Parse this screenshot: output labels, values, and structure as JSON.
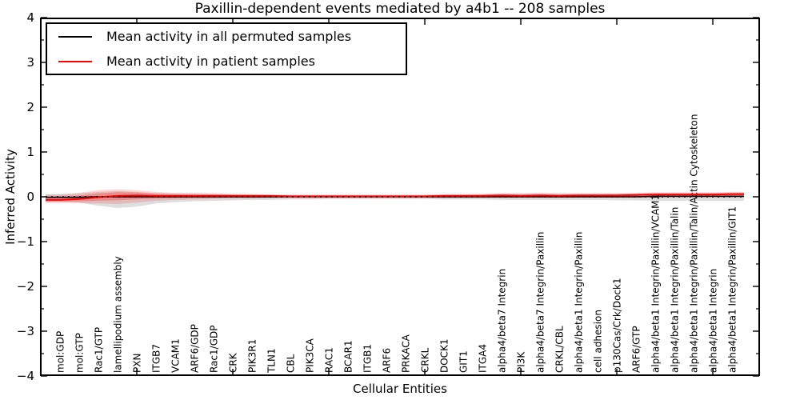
{
  "chart_data": {
    "type": "line",
    "title": "Paxillin-dependent events mediated by a4b1 -- 208 samples",
    "xlabel": "Cellular Entities",
    "ylabel": "Inferred Activity",
    "ylim": [
      -4,
      4
    ],
    "y_major_ticks": [
      -4,
      -3,
      -2,
      -1,
      0,
      1,
      2,
      3,
      4
    ],
    "x_major_tick_positions": [
      4,
      9,
      14,
      19,
      24,
      29,
      34
    ],
    "zero_line": true,
    "legend_position": "upper left",
    "inner_band_factor": 0.55,
    "categories": [
      "mol:GDP",
      "mol:GTP",
      "Rac1/GTP",
      "lamellipodium assembly",
      "PXN",
      "ITGB7",
      "VCAM1",
      "ARF6/GDP",
      "Rac1/GDP",
      "CRK",
      "PIK3R1",
      "TLN1",
      "CBL",
      "PIK3CA",
      "RAC1",
      "BCAR1",
      "ITGB1",
      "ARF6",
      "PRKACA",
      "CRKL",
      "DOCK1",
      "GIT1",
      "ITGA4",
      "alpha4/beta7 Integrin",
      "PI3K",
      "alpha4/beta7 Integrin/Paxillin",
      "CRKL/CBL",
      "alpha4/beta1 Integrin/Paxillin",
      "cell adhesion",
      "p130Cas/Crk/Dock1",
      "ARF6/GTP",
      "alpha4/beta1 Integrin/Paxillin/VCAM1",
      "alpha4/beta1 Integrin/Paxillin/Talin",
      "alpha4/beta1 Integrin/Paxillin/Talin/Actin Cytoskeleton",
      "alpha4/beta1 Integrin",
      "alpha4/beta1 Integrin/Paxillin/GIT1"
    ],
    "series": [
      {
        "name": "Mean activity in all permuted samples",
        "color": "#000000",
        "values": [
          -0.01,
          -0.01,
          0,
          0,
          0,
          0,
          0,
          0,
          0,
          0,
          0,
          0,
          0,
          0,
          0,
          0,
          0,
          0,
          0,
          0,
          0,
          0,
          0,
          0,
          0,
          0,
          0,
          0,
          0,
          0,
          0,
          0.01,
          0.01,
          0.01,
          0.01,
          0.01
        ]
      },
      {
        "name": "Mean activity in patient samples",
        "color": "#ff0000",
        "values": [
          -0.07,
          -0.05,
          -0.01,
          0.02,
          0.03,
          0.02,
          0.02,
          0.02,
          0.02,
          0.02,
          0.02,
          0.02,
          0.01,
          0.01,
          0.01,
          0.01,
          0.01,
          0.01,
          0.01,
          0.01,
          0.02,
          0.02,
          0.02,
          0.03,
          0.02,
          0.03,
          0.02,
          0.03,
          0.03,
          0.03,
          0.04,
          0.05,
          0.05,
          0.05,
          0.05,
          0.06
        ]
      }
    ],
    "bands": [
      {
        "name": "permuted-spread",
        "color": "#000000",
        "opacity": 0.13,
        "upper": [
          0.06,
          0.08,
          0.11,
          0.13,
          0.11,
          0.08,
          0.07,
          0.06,
          0.06,
          0.05,
          0.05,
          0.05,
          0.04,
          0.04,
          0.04,
          0.04,
          0.04,
          0.04,
          0.04,
          0.04,
          0.05,
          0.05,
          0.05,
          0.06,
          0.06,
          0.06,
          0.06,
          0.06,
          0.06,
          0.07,
          0.07,
          0.08,
          0.08,
          0.08,
          0.08,
          0.08
        ],
        "lower": [
          -0.1,
          -0.13,
          -0.2,
          -0.25,
          -0.22,
          -0.15,
          -0.12,
          -0.1,
          -0.09,
          -0.08,
          -0.07,
          -0.07,
          -0.06,
          -0.06,
          -0.05,
          -0.05,
          -0.05,
          -0.05,
          -0.05,
          -0.05,
          -0.06,
          -0.06,
          -0.06,
          -0.07,
          -0.07,
          -0.07,
          -0.07,
          -0.07,
          -0.07,
          -0.08,
          -0.08,
          -0.09,
          -0.09,
          -0.09,
          -0.09,
          -0.09
        ]
      },
      {
        "name": "patient-spread",
        "color": "#ff0000",
        "opacity": 0.16,
        "upper": [
          0.05,
          0.09,
          0.15,
          0.17,
          0.15,
          0.11,
          0.09,
          0.09,
          0.08,
          0.07,
          0.06,
          0.05,
          0.05,
          0.05,
          0.05,
          0.05,
          0.05,
          0.05,
          0.05,
          0.05,
          0.06,
          0.06,
          0.07,
          0.08,
          0.08,
          0.09,
          0.08,
          0.08,
          0.08,
          0.08,
          0.09,
          0.1,
          0.1,
          0.1,
          0.1,
          0.11
        ],
        "lower": [
          -0.14,
          -0.14,
          -0.15,
          -0.16,
          -0.13,
          -0.09,
          -0.07,
          -0.06,
          -0.05,
          -0.04,
          -0.04,
          -0.03,
          -0.03,
          -0.03,
          -0.03,
          -0.03,
          -0.03,
          -0.03,
          -0.03,
          -0.03,
          -0.03,
          -0.03,
          -0.03,
          -0.03,
          -0.03,
          -0.03,
          -0.03,
          -0.02,
          -0.02,
          -0.02,
          -0.02,
          -0.02,
          -0.01,
          -0.01,
          -0.01,
          -0.01
        ]
      }
    ]
  }
}
